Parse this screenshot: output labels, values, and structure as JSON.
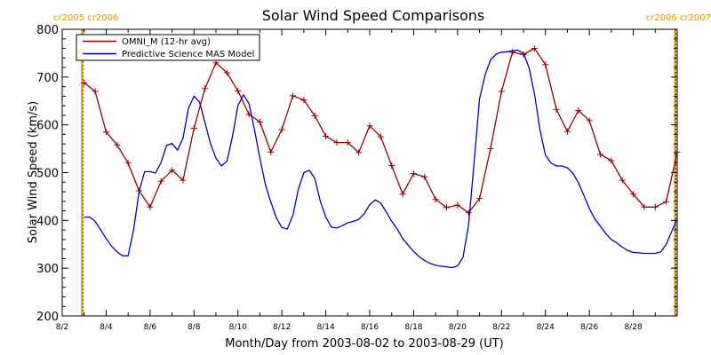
{
  "chart_data": {
    "type": "line",
    "title": "Solar Wind Speed Comparisons",
    "xlabel": "Month/Day from 2003-08-02 to 2003-08-29 (UT)",
    "ylabel": "Solar Wind Speed (km/s)",
    "xlim": [
      2.0,
      30.0
    ],
    "ylim": [
      200,
      800
    ],
    "x_unit": "days of August 2003",
    "xtick_values": [
      2,
      4,
      6,
      8,
      10,
      12,
      14,
      16,
      18,
      20,
      22,
      24,
      26,
      28
    ],
    "xtick_labels": [
      "8/2",
      "8/4",
      "8/6",
      "8/8",
      "8/10",
      "8/12",
      "8/14",
      "8/16",
      "8/18",
      "8/20",
      "8/22",
      "8/24",
      "8/26",
      "8/28"
    ],
    "ytick_values": [
      200,
      300,
      400,
      500,
      600,
      700,
      800
    ],
    "ytick_labels": [
      "200",
      "300",
      "400",
      "500",
      "600",
      "700",
      "800"
    ],
    "grid": false,
    "legend": {
      "placement": "top-left",
      "entries": [
        "OMNI_M (12-hr avg)",
        "Predictive Science MAS Model"
      ]
    },
    "carrington_markers": [
      {
        "x": 2.9,
        "label": "cr2005 cr2006",
        "side": "left"
      },
      {
        "x": 29.9,
        "label": "cr2006 cr2007",
        "side": "right"
      }
    ],
    "marker_color": "#e69500",
    "series": [
      {
        "name": "OMNI_M (12-hr avg)",
        "color": "#990000",
        "marker": "plus",
        "x": [
          3.0,
          3.5,
          4.0,
          4.5,
          5.0,
          5.5,
          6.0,
          6.5,
          7.0,
          7.5,
          8.0,
          8.5,
          9.0,
          9.5,
          10.0,
          10.5,
          11.0,
          11.5,
          12.0,
          12.5,
          13.0,
          13.5,
          14.0,
          14.5,
          15.0,
          15.5,
          16.0,
          16.5,
          17.0,
          17.5,
          18.0,
          18.5,
          19.0,
          19.5,
          20.0,
          20.5,
          21.0,
          21.5,
          22.0,
          22.5,
          23.0,
          23.5,
          24.0,
          24.5,
          25.0,
          25.5,
          26.0,
          26.5,
          27.0,
          27.5,
          28.0,
          28.5,
          29.0,
          29.5,
          30.0
        ],
        "values": [
          688,
          670,
          585,
          558,
          520,
          462,
          428,
          482,
          505,
          484,
          593,
          676,
          730,
          709,
          671,
          622,
          606,
          543,
          590,
          661,
          652,
          619,
          576,
          563,
          563,
          542,
          598,
          575,
          515,
          455,
          498,
          491,
          444,
          427,
          432,
          416,
          446,
          550,
          670,
          752,
          747,
          760,
          726,
          632,
          586,
          630,
          609,
          538,
          525,
          484,
          455,
          428,
          428,
          439,
          543
        ]
      },
      {
        "name": "Predictive Science MAS Model",
        "color": "#0000cc",
        "marker": "none",
        "x": [
          3.0,
          3.25,
          3.5,
          3.75,
          4.0,
          4.25,
          4.5,
          4.75,
          5.0,
          5.25,
          5.5,
          5.75,
          6.0,
          6.25,
          6.5,
          6.75,
          7.0,
          7.25,
          7.5,
          7.75,
          8.0,
          8.25,
          8.5,
          8.75,
          9.0,
          9.25,
          9.5,
          9.75,
          10.0,
          10.25,
          10.5,
          10.75,
          11.0,
          11.25,
          11.5,
          11.75,
          12.0,
          12.25,
          12.5,
          12.75,
          13.0,
          13.25,
          13.5,
          13.75,
          14.0,
          14.25,
          14.5,
          14.75,
          15.0,
          15.25,
          15.5,
          15.75,
          16.0,
          16.25,
          16.5,
          16.75,
          17.0,
          17.25,
          17.5,
          17.75,
          18.0,
          18.25,
          18.5,
          18.75,
          19.0,
          19.25,
          19.5,
          19.75,
          20.0,
          20.25,
          20.5,
          20.75,
          21.0,
          21.25,
          21.5,
          21.75,
          22.0,
          22.25,
          22.5,
          22.75,
          23.0,
          23.25,
          23.5,
          23.75,
          24.0,
          24.25,
          24.5,
          24.75,
          25.0,
          25.25,
          25.5,
          25.75,
          26.0,
          26.25,
          26.5,
          26.75,
          27.0,
          27.25,
          27.5,
          27.75,
          28.0,
          28.25,
          28.5,
          28.75,
          29.0,
          29.25,
          29.5,
          29.75,
          30.0
        ],
        "values": [
          407,
          407,
          398,
          380,
          362,
          346,
          334,
          326,
          326,
          380,
          460,
          502,
          502,
          499,
          521,
          557,
          561,
          547,
          572,
          635,
          660,
          648,
          605,
          561,
          530,
          514,
          524,
          575,
          640,
          663,
          645,
          590,
          530,
          475,
          438,
          405,
          385,
          382,
          410,
          465,
          500,
          505,
          488,
          440,
          407,
          386,
          384,
          389,
          395,
          398,
          402,
          414,
          433,
          443,
          436,
          418,
          398,
          382,
          362,
          348,
          335,
          324,
          316,
          310,
          306,
          304,
          303,
          301,
          305,
          323,
          390,
          520,
          655,
          704,
          736,
          748,
          752,
          753,
          755,
          756,
          750,
          720,
          665,
          590,
          537,
          520,
          514,
          514,
          510,
          499,
          479,
          452,
          425,
          403,
          388,
          372,
          360,
          353,
          344,
          337,
          333,
          332,
          331,
          331,
          331,
          334,
          350,
          377,
          403
        ]
      }
    ]
  }
}
